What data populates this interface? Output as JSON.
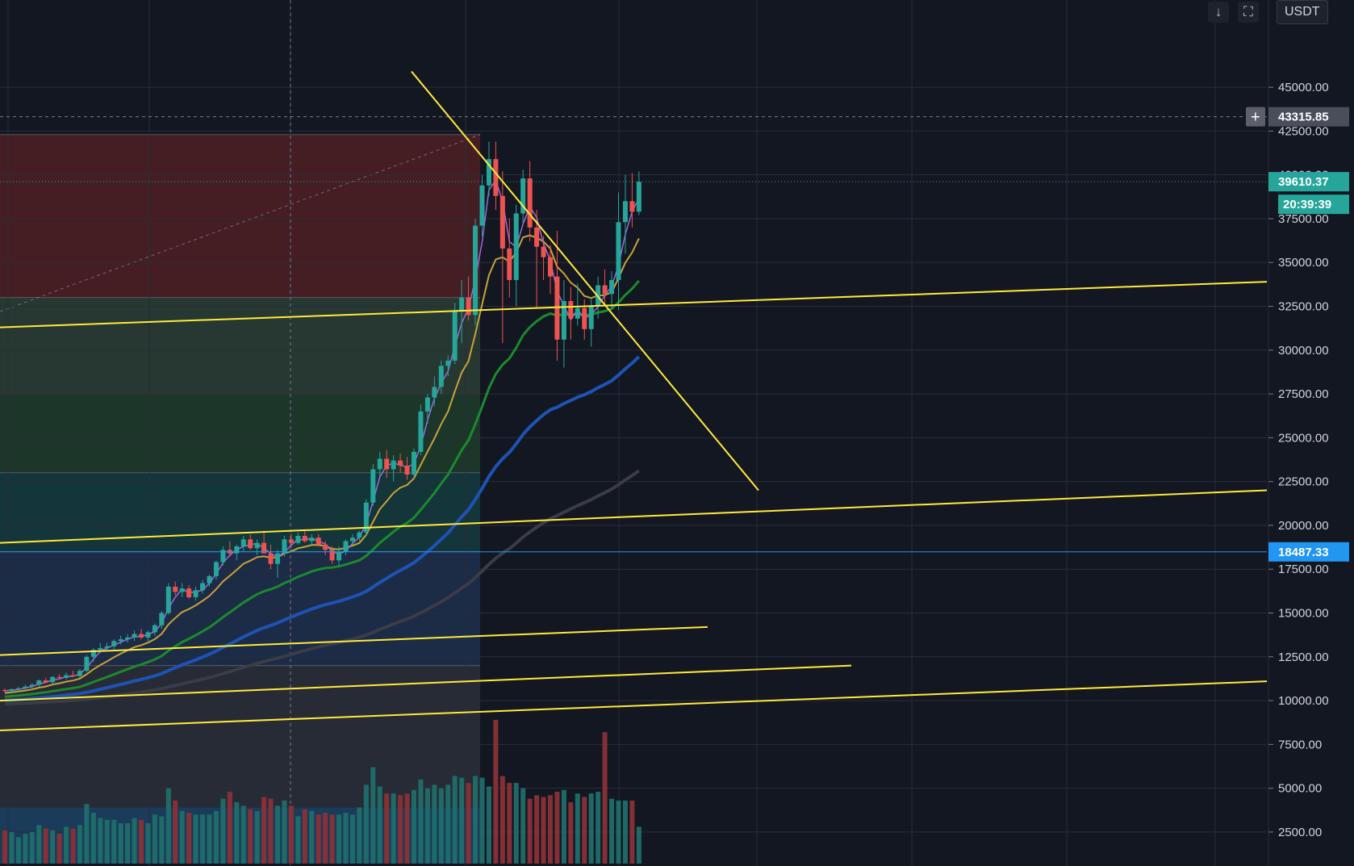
{
  "header": {
    "currency_label": "USDT",
    "scroll_down_icon": "arrow-down-icon",
    "fullscreen_icon": "fullscreen-icon"
  },
  "chart_data": {
    "type": "candlestick",
    "ylim": [
      700,
      47400
    ],
    "y_ticks": [
      2500,
      5000,
      7500,
      10000,
      12500,
      15000,
      17500,
      20000,
      22500,
      25000,
      27500,
      30000,
      32500,
      35000,
      37500,
      40000,
      42500,
      45000
    ],
    "grid": true,
    "current_price": {
      "label": "39610.37",
      "value": 39610.37,
      "color": "#26a69a"
    },
    "countdown": {
      "label": "20:39:39",
      "color": "#26a69a"
    },
    "crosshair_price": {
      "label": "43315.85",
      "value": 43315.85
    },
    "horizontal_level": {
      "label": "18487.33",
      "value": 18487.33,
      "color": "#2196f3"
    },
    "colors": {
      "up": "#26a69a",
      "down": "#ef5350",
      "ma_fast": "#9c6ade",
      "ma_yellow": "#c9a23a",
      "ma_green": "#1b8a2e",
      "ma_blue": "#1e53b5",
      "ma_gray": "#3a3d48",
      "trendline": "#ffeb3b"
    },
    "candles": [
      [
        10600,
        10700,
        10450,
        10550
      ],
      [
        10550,
        10700,
        10400,
        10650
      ],
      [
        10650,
        10800,
        10500,
        10700
      ],
      [
        10700,
        10900,
        10600,
        10800
      ],
      [
        10800,
        11000,
        10700,
        10900
      ],
      [
        10900,
        11200,
        10800,
        11150
      ],
      [
        11150,
        11300,
        11000,
        11050
      ],
      [
        11050,
        11400,
        10950,
        11350
      ],
      [
        11350,
        11500,
        11200,
        11300
      ],
      [
        11300,
        11600,
        11200,
        11450
      ],
      [
        11450,
        11700,
        11350,
        11400
      ],
      [
        11400,
        11800,
        11300,
        11700
      ],
      [
        11700,
        12600,
        11600,
        12500
      ],
      [
        12500,
        13000,
        12200,
        12900
      ],
      [
        12900,
        13300,
        12700,
        13000
      ],
      [
        13000,
        13300,
        12800,
        13100
      ],
      [
        13100,
        13500,
        12900,
        13400
      ],
      [
        13400,
        13700,
        13200,
        13500
      ],
      [
        13500,
        13800,
        13300,
        13600
      ],
      [
        13600,
        14000,
        13400,
        13800
      ],
      [
        13800,
        14100,
        13500,
        13600
      ],
      [
        13600,
        14000,
        13400,
        13900
      ],
      [
        13900,
        14400,
        13700,
        14300
      ],
      [
        14300,
        15100,
        14100,
        15000
      ],
      [
        15000,
        16700,
        14900,
        16500
      ],
      [
        16500,
        16800,
        16000,
        16200
      ],
      [
        16200,
        16700,
        15900,
        16400
      ],
      [
        16400,
        16600,
        15800,
        15900
      ],
      [
        15900,
        16500,
        15700,
        16300
      ],
      [
        16300,
        16900,
        16100,
        16700
      ],
      [
        16700,
        17200,
        16500,
        17100
      ],
      [
        17100,
        18000,
        16900,
        17900
      ],
      [
        17900,
        18800,
        17700,
        18600
      ],
      [
        18600,
        19100,
        18200,
        18400
      ],
      [
        18400,
        18900,
        18000,
        18800
      ],
      [
        18800,
        19400,
        18500,
        19200
      ],
      [
        19200,
        19500,
        18600,
        18700
      ],
      [
        18700,
        19200,
        18300,
        19000
      ],
      [
        19000,
        19700,
        18700,
        18400
      ],
      [
        18400,
        18900,
        17500,
        17800
      ],
      [
        17800,
        18600,
        17000,
        18400
      ],
      [
        18400,
        19400,
        18200,
        19200
      ],
      [
        19200,
        19500,
        18700,
        19000
      ],
      [
        19000,
        19600,
        18900,
        19400
      ],
      [
        19400,
        19700,
        19000,
        19100
      ],
      [
        19100,
        19500,
        18900,
        19300
      ],
      [
        19300,
        19500,
        18800,
        18900
      ],
      [
        18900,
        19100,
        18300,
        18600
      ],
      [
        18600,
        18800,
        17800,
        18000
      ],
      [
        18000,
        18800,
        17700,
        18500
      ],
      [
        18500,
        19200,
        18300,
        19100
      ],
      [
        19100,
        19500,
        18900,
        19300
      ],
      [
        19300,
        19700,
        19100,
        19600
      ],
      [
        19600,
        21500,
        19400,
        21300
      ],
      [
        21300,
        23500,
        21100,
        23200
      ],
      [
        23200,
        24200,
        22800,
        23800
      ],
      [
        23800,
        24300,
        22700,
        23200
      ],
      [
        23200,
        24000,
        22500,
        23700
      ],
      [
        23700,
        24100,
        23000,
        23400
      ],
      [
        23400,
        23900,
        22600,
        22900
      ],
      [
        22900,
        24400,
        22700,
        24200
      ],
      [
        24200,
        26900,
        24000,
        26500
      ],
      [
        26500,
        27500,
        25800,
        27300
      ],
      [
        27300,
        28500,
        26800,
        27900
      ],
      [
        27900,
        29400,
        27500,
        29100
      ],
      [
        29100,
        29700,
        28500,
        29400
      ],
      [
        29400,
        32700,
        29200,
        32200
      ],
      [
        32200,
        34000,
        30400,
        33000
      ],
      [
        33000,
        34200,
        31700,
        32000
      ],
      [
        32000,
        37500,
        31400,
        37100
      ],
      [
        37100,
        40000,
        36500,
        39400
      ],
      [
        39400,
        41900,
        38800,
        40900
      ],
      [
        40900,
        41900,
        38000,
        38800
      ],
      [
        38800,
        40200,
        30400,
        35800
      ],
      [
        35800,
        37500,
        33000,
        34000
      ],
      [
        34000,
        38300,
        32500,
        37800
      ],
      [
        37800,
        40300,
        37200,
        39800
      ],
      [
        39800,
        40800,
        36200,
        37000
      ],
      [
        37000,
        38000,
        32400,
        35900
      ],
      [
        35900,
        36500,
        34000,
        35300
      ],
      [
        35300,
        36000,
        33200,
        34200
      ],
      [
        34200,
        36800,
        29400,
        30600
      ],
      [
        30600,
        34000,
        29000,
        32800
      ],
      [
        32800,
        33600,
        30600,
        31800
      ],
      [
        31800,
        33800,
        31400,
        32400
      ],
      [
        32400,
        32900,
        30600,
        31200
      ],
      [
        31200,
        33000,
        30200,
        32500
      ],
      [
        32500,
        34200,
        31800,
        33700
      ],
      [
        33700,
        34600,
        32600,
        33200
      ],
      [
        33200,
        34500,
        32300,
        34000
      ],
      [
        34000,
        39000,
        32300,
        37300
      ],
      [
        37300,
        40000,
        35500,
        38500
      ],
      [
        38500,
        40100,
        37000,
        37900
      ],
      [
        37900,
        40200,
        37700,
        39610
      ]
    ],
    "volume_heights": [
      1900,
      1800,
      1500,
      1700,
      1800,
      2200,
      2000,
      1900,
      1700,
      2100,
      2000,
      2200,
      3400,
      2900,
      2600,
      2500,
      2500,
      2300,
      2300,
      2600,
      2500,
      2300,
      2800,
      2700,
      4300,
      3600,
      3000,
      2900,
      2800,
      2800,
      2800,
      3000,
      3700,
      4100,
      3500,
      3300,
      3100,
      3000,
      3800,
      3700,
      3300,
      3600,
      3300,
      2700,
      3100,
      3000,
      2800,
      2900,
      2800,
      2800,
      2900,
      2800,
      3200,
      4500,
      5500,
      4400,
      4000,
      4000,
      3900,
      4000,
      4200,
      4800,
      4300,
      4500,
      4300,
      4500,
      5000,
      4900,
      4600,
      5000,
      4900,
      4400,
      8200,
      5000,
      4600,
      4600,
      4300,
      3700,
      3900,
      3800,
      3900,
      4100,
      4200,
      3500,
      4000,
      3800,
      4000,
      4100,
      7500,
      3700,
      3600,
      3600,
      3600,
      2100
    ],
    "fib_zones": [
      {
        "top": 42300,
        "bottom": 33000,
        "color": "#4a1f24"
      },
      {
        "top": 33000,
        "bottom": 27500,
        "color": "#2a3b33"
      },
      {
        "top": 27500,
        "bottom": 23000,
        "color": "#1e3a2b"
      },
      {
        "top": 23000,
        "bottom": 18500,
        "color": "#15393c"
      },
      {
        "top": 18500,
        "bottom": 12000,
        "color": "#1e2e4a"
      },
      {
        "top": 12000,
        "bottom": 700,
        "color": "#2a2d38"
      }
    ],
    "fib_volume_zone": {
      "top": 3900,
      "bottom": 700,
      "color": "#1a3d5e"
    },
    "trendlines": [
      {
        "x1": 0,
        "y1": 31300,
        "x2": 1570,
        "y2": 33900
      },
      {
        "x1": 510,
        "y1": 45900,
        "x2": 940,
        "y2": 22000
      },
      {
        "x1": 0,
        "y1": 19000,
        "x2": 1570,
        "y2": 22000
      },
      {
        "x1": 0,
        "y1": 12600,
        "x2": 877,
        "y2": 14200
      },
      {
        "x1": 0,
        "y1": 10000,
        "x2": 1055,
        "y2": 12000
      },
      {
        "x1": 0,
        "y1": 8300,
        "x2": 1570,
        "y2": 11100
      }
    ]
  }
}
